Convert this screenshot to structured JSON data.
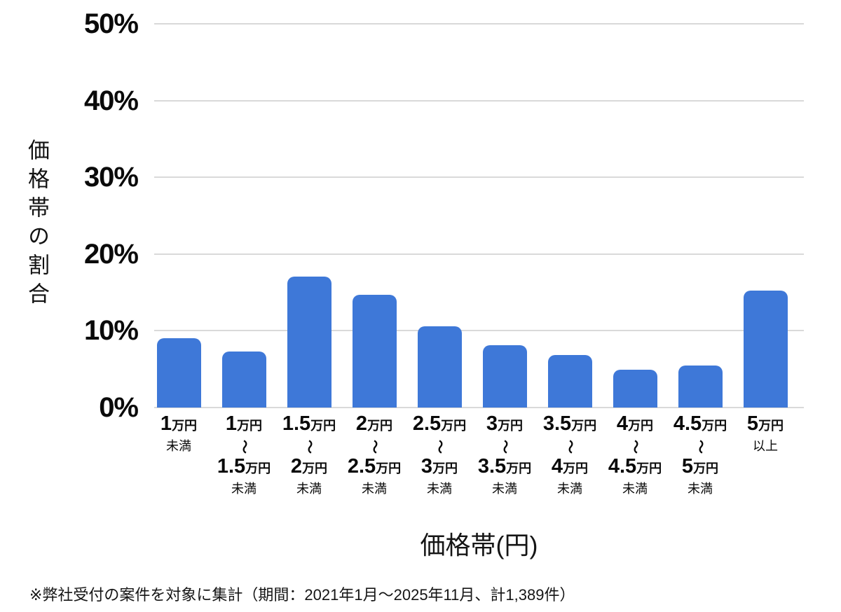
{
  "chart_data": {
    "type": "bar",
    "title": "",
    "xlabel": "価格帯(円)",
    "ylabel": "価格帯の割合",
    "y_ticks": [
      "0%",
      "10%",
      "20%",
      "30%",
      "40%",
      "50%"
    ],
    "ylim": [
      0,
      50
    ],
    "grid": true,
    "legend": "none",
    "bar_color": "#3e78d8",
    "gridline_color": "#d9d9d9",
    "categories": [
      "1万円未満",
      "1万円〜1.5万円未満",
      "1.5万円〜2万円未満",
      "2万円〜2.5万円未満",
      "2.5万円〜3万円未満",
      "3万円〜3.5万円未満",
      "3.5万円〜4万円未満",
      "4万円〜4.5万円未満",
      "4.5万円〜5万円未満",
      "5万円以上"
    ],
    "category_labels": [
      {
        "top": "1",
        "top_unit": "万円",
        "tilde": "",
        "bottom": "",
        "bottom_unit": "",
        "note": "未満"
      },
      {
        "top": "1",
        "top_unit": "万円",
        "tilde": "〜",
        "bottom": "1.5",
        "bottom_unit": "万円",
        "note": "未満"
      },
      {
        "top": "1.5",
        "top_unit": "万円",
        "tilde": "〜",
        "bottom": "2",
        "bottom_unit": "万円",
        "note": "未満"
      },
      {
        "top": "2",
        "top_unit": "万円",
        "tilde": "〜",
        "bottom": "2.5",
        "bottom_unit": "万円",
        "note": "未満"
      },
      {
        "top": "2.5",
        "top_unit": "万円",
        "tilde": "〜",
        "bottom": "3",
        "bottom_unit": "万円",
        "note": "未満"
      },
      {
        "top": "3",
        "top_unit": "万円",
        "tilde": "〜",
        "bottom": "3.5",
        "bottom_unit": "万円",
        "note": "未満"
      },
      {
        "top": "3.5",
        "top_unit": "万円",
        "tilde": "〜",
        "bottom": "4",
        "bottom_unit": "万円",
        "note": "未満"
      },
      {
        "top": "4",
        "top_unit": "万円",
        "tilde": "〜",
        "bottom": "4.5",
        "bottom_unit": "万円",
        "note": "未満"
      },
      {
        "top": "4.5",
        "top_unit": "万円",
        "tilde": "〜",
        "bottom": "5",
        "bottom_unit": "万円",
        "note": "未満"
      },
      {
        "top": "5",
        "top_unit": "万円",
        "tilde": "",
        "bottom": "",
        "bottom_unit": "",
        "note": "以上"
      }
    ],
    "values": [
      9.0,
      7.3,
      17.1,
      14.7,
      10.6,
      8.1,
      6.8,
      4.9,
      5.5,
      15.2
    ]
  },
  "footnote": "※弊社受付の案件を対象に集計（期間：2021年1月～2025年11月、計1,389件）"
}
